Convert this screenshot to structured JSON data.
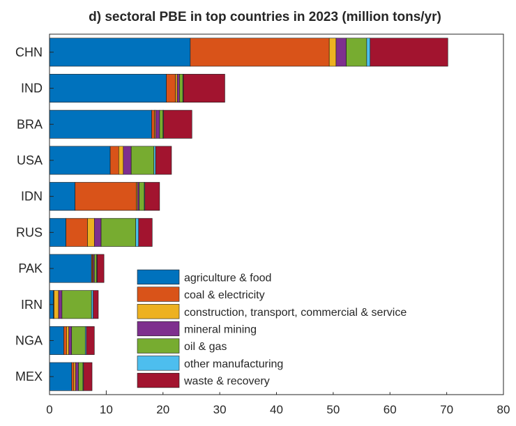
{
  "chart_data": {
    "type": "bar",
    "orientation": "horizontal",
    "stacked": true,
    "title": "d) sectoral PBE in top countries in 2023 (million tons/yr)",
    "xlabel": "",
    "ylabel": "",
    "xlim": [
      0,
      80
    ],
    "xticks": [
      "0",
      "10",
      "20",
      "30",
      "40",
      "50",
      "60",
      "70",
      "80"
    ],
    "categories": [
      "CHN",
      "IND",
      "BRA",
      "USA",
      "IDN",
      "RUS",
      "PAK",
      "IRN",
      "NGA",
      "MEX"
    ],
    "series": [
      {
        "name": "agriculture & food",
        "color": "#0072BD",
        "values": [
          24.8,
          20.6,
          18.0,
          10.7,
          4.5,
          2.9,
          7.4,
          0.7,
          2.5,
          3.9
        ]
      },
      {
        "name": "coal & electricity",
        "color": "#D95319",
        "values": [
          24.5,
          1.6,
          0.5,
          1.5,
          10.8,
          3.8,
          0.2,
          0.1,
          0.5,
          0.4
        ]
      },
      {
        "name": "construction, transport, commercial & service",
        "color": "#EDB120",
        "values": [
          1.2,
          0.3,
          0.2,
          0.8,
          0.2,
          1.2,
          0.1,
          0.8,
          0.4,
          0.3
        ]
      },
      {
        "name": "mineral mining",
        "color": "#7E2F8E",
        "values": [
          1.8,
          0.4,
          0.7,
          1.4,
          0.3,
          1.2,
          0.2,
          0.6,
          0.5,
          0.5
        ]
      },
      {
        "name": "oil & gas",
        "color": "#77AC30",
        "values": [
          3.6,
          0.6,
          0.6,
          4.0,
          0.9,
          6.1,
          0.4,
          5.2,
          2.4,
          0.8
        ]
      },
      {
        "name": "other manufacturing",
        "color": "#4DBEEE",
        "values": [
          0.6,
          0.1,
          0.1,
          0.3,
          0.1,
          0.5,
          0.1,
          0.3,
          0.2,
          0.1
        ]
      },
      {
        "name": "waste & recovery",
        "color": "#A2142F",
        "values": [
          13.7,
          7.3,
          5.0,
          2.8,
          2.6,
          2.4,
          1.2,
          0.9,
          1.4,
          1.5
        ]
      }
    ],
    "legend_position": "bottom-center",
    "grid": false
  }
}
